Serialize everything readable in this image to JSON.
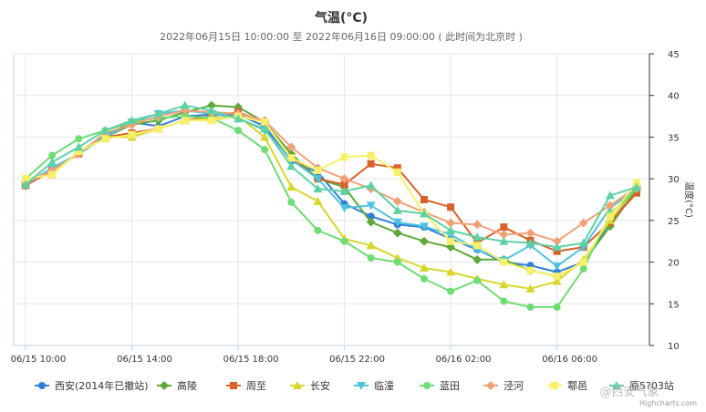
{
  "chart_data": {
    "type": "line",
    "title": "气温(°C)",
    "subtitle": "2022年06月15日 10:00:00 至 2022年06月16日 09:00:00 ( 此时间为北京时 )",
    "ylabel": "温度(°C)",
    "ylim": [
      10,
      45
    ],
    "yticks": [
      10,
      15,
      20,
      25,
      30,
      35,
      40,
      45
    ],
    "x_hours": [
      10,
      11,
      12,
      13,
      14,
      15,
      16,
      17,
      18,
      19,
      20,
      21,
      22,
      23,
      24,
      25,
      26,
      27,
      28,
      29,
      30,
      31,
      32,
      33
    ],
    "x_tick_hours": [
      10,
      14,
      18,
      22,
      26,
      30
    ],
    "x_tick_labels": [
      "06/15 10:00",
      "06/15 14:00",
      "06/15 18:00",
      "06/15 22:00",
      "06/16 02:00",
      "06/16 06:00"
    ],
    "series": [
      {
        "name": "西安(2014年已撤站)",
        "color": "#2f7ed8",
        "marker": "circle",
        "values": [
          29.3,
          31.3,
          33.0,
          35.2,
          36.8,
          36.3,
          37.5,
          37.7,
          37.7,
          36.3,
          32.1,
          30.8,
          27.0,
          25.5,
          24.5,
          24.2,
          22.8,
          21.5,
          20.0,
          19.6,
          18.8,
          20.0,
          24.8,
          28.5
        ]
      },
      {
        "name": "高陵",
        "color": "#5fa83a",
        "marker": "diamond",
        "values": [
          29.2,
          31.0,
          33.0,
          35.0,
          36.5,
          37.0,
          38.0,
          38.8,
          38.6,
          36.8,
          33.0,
          30.0,
          29.0,
          24.8,
          23.5,
          22.5,
          21.8,
          20.3,
          20.3,
          19.0,
          18.3,
          20.0,
          24.3,
          28.8
        ]
      },
      {
        "name": "周至",
        "color": "#d9622b",
        "marker": "square",
        "values": [
          29.2,
          31.0,
          33.0,
          35.0,
          35.5,
          36.0,
          37.0,
          37.5,
          38.0,
          36.8,
          32.5,
          30.0,
          29.3,
          31.8,
          31.3,
          27.5,
          26.6,
          22.3,
          24.2,
          22.6,
          21.3,
          21.8,
          24.8,
          28.3
        ]
      },
      {
        "name": "长安",
        "color": "#d6d62c",
        "marker": "triangle",
        "values": [
          30.0,
          30.5,
          33.3,
          35.0,
          35.0,
          36.0,
          37.0,
          37.2,
          37.5,
          35.0,
          29.0,
          27.3,
          22.8,
          22.0,
          20.5,
          19.3,
          18.8,
          18.0,
          17.3,
          16.8,
          17.7,
          20.3,
          25.0,
          29.0
        ]
      },
      {
        "name": "临潼",
        "color": "#4fc3dc",
        "marker": "triangle-down",
        "values": [
          29.3,
          31.3,
          33.0,
          35.0,
          36.8,
          37.8,
          38.2,
          37.8,
          37.3,
          35.8,
          32.3,
          30.0,
          26.5,
          26.8,
          24.8,
          24.3,
          23.3,
          21.5,
          20.2,
          22.0,
          19.5,
          21.8,
          26.5,
          28.8
        ]
      },
      {
        "name": "蓝田",
        "color": "#6fdc74",
        "marker": "circle",
        "values": [
          30.0,
          32.8,
          34.8,
          35.8,
          36.8,
          37.3,
          37.5,
          37.3,
          35.8,
          33.5,
          27.2,
          23.8,
          22.5,
          20.5,
          20.0,
          18.0,
          16.5,
          17.8,
          15.3,
          14.6,
          14.6,
          19.2,
          25.8,
          28.8
        ]
      },
      {
        "name": "泾河",
        "color": "#f0a277",
        "marker": "diamond",
        "values": [
          29.5,
          31.0,
          33.0,
          35.5,
          36.5,
          37.5,
          38.2,
          38.0,
          37.8,
          37.0,
          33.8,
          31.3,
          30.0,
          28.8,
          27.3,
          26.0,
          24.7,
          24.5,
          23.3,
          23.5,
          22.5,
          24.7,
          26.8,
          29.0
        ]
      },
      {
        "name": "鄠邑",
        "color": "#f7f069",
        "marker": "square",
        "values": [
          30.0,
          30.5,
          33.3,
          34.8,
          35.3,
          36.0,
          37.0,
          37.0,
          37.5,
          36.8,
          32.5,
          31.0,
          32.6,
          32.8,
          30.8,
          25.8,
          22.5,
          22.0,
          20.0,
          19.0,
          18.3,
          20.0,
          25.5,
          29.5
        ]
      },
      {
        "name": "原5?03站",
        "color": "#5ed1a3",
        "marker": "triangle",
        "values": [
          29.3,
          32.0,
          33.8,
          35.8,
          37.0,
          37.8,
          38.8,
          38.2,
          37.2,
          36.0,
          31.5,
          28.8,
          28.5,
          29.2,
          26.2,
          25.8,
          23.8,
          23.0,
          22.5,
          22.3,
          21.8,
          22.3,
          28.0,
          29.0
        ]
      }
    ],
    "grid": true,
    "legend_position": "bottom"
  },
  "credit_text": "Highcharts.com",
  "watermark_text": "@西安气象"
}
